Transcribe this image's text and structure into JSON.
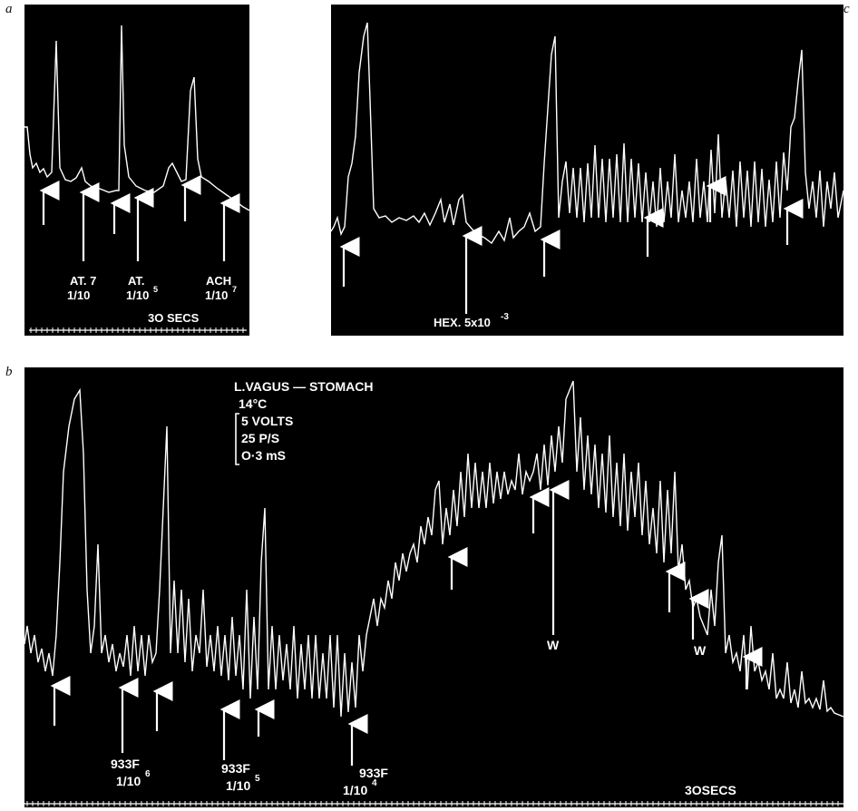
{
  "panels": {
    "a": {
      "letter": "a",
      "labels": [
        {
          "line1": "AT. 7",
          "line2": "1/10"
        },
        {
          "line1": "AT.",
          "line2": "1/10",
          "sup": "5"
        },
        {
          "line1": "ACH",
          "line2": "1/10",
          "sup": "7"
        }
      ],
      "timebar": "3O SECS"
    },
    "c": {
      "letter": "c",
      "label": "HEX. 5x10",
      "label_sup": "-3"
    },
    "b": {
      "letter": "b",
      "conditions": [
        "L.VAGUS — STOMACH",
        "14°C",
        "5 VOLTS",
        "25 P/S",
        "O·3 mS"
      ],
      "drug_labels": [
        {
          "line1": "933F",
          "line2": "1/10",
          "sup": "6"
        },
        {
          "line1": "933F",
          "line2": "1/10",
          "sup": "5"
        },
        {
          "line1": "933F",
          "line2": "1/10",
          "sup": "4"
        }
      ],
      "wash_labels": [
        "W",
        "W"
      ],
      "timebar": "3OSECS"
    }
  },
  "colors": {
    "background": "#000000",
    "trace": "#ffffff",
    "page": "#ffffff"
  }
}
